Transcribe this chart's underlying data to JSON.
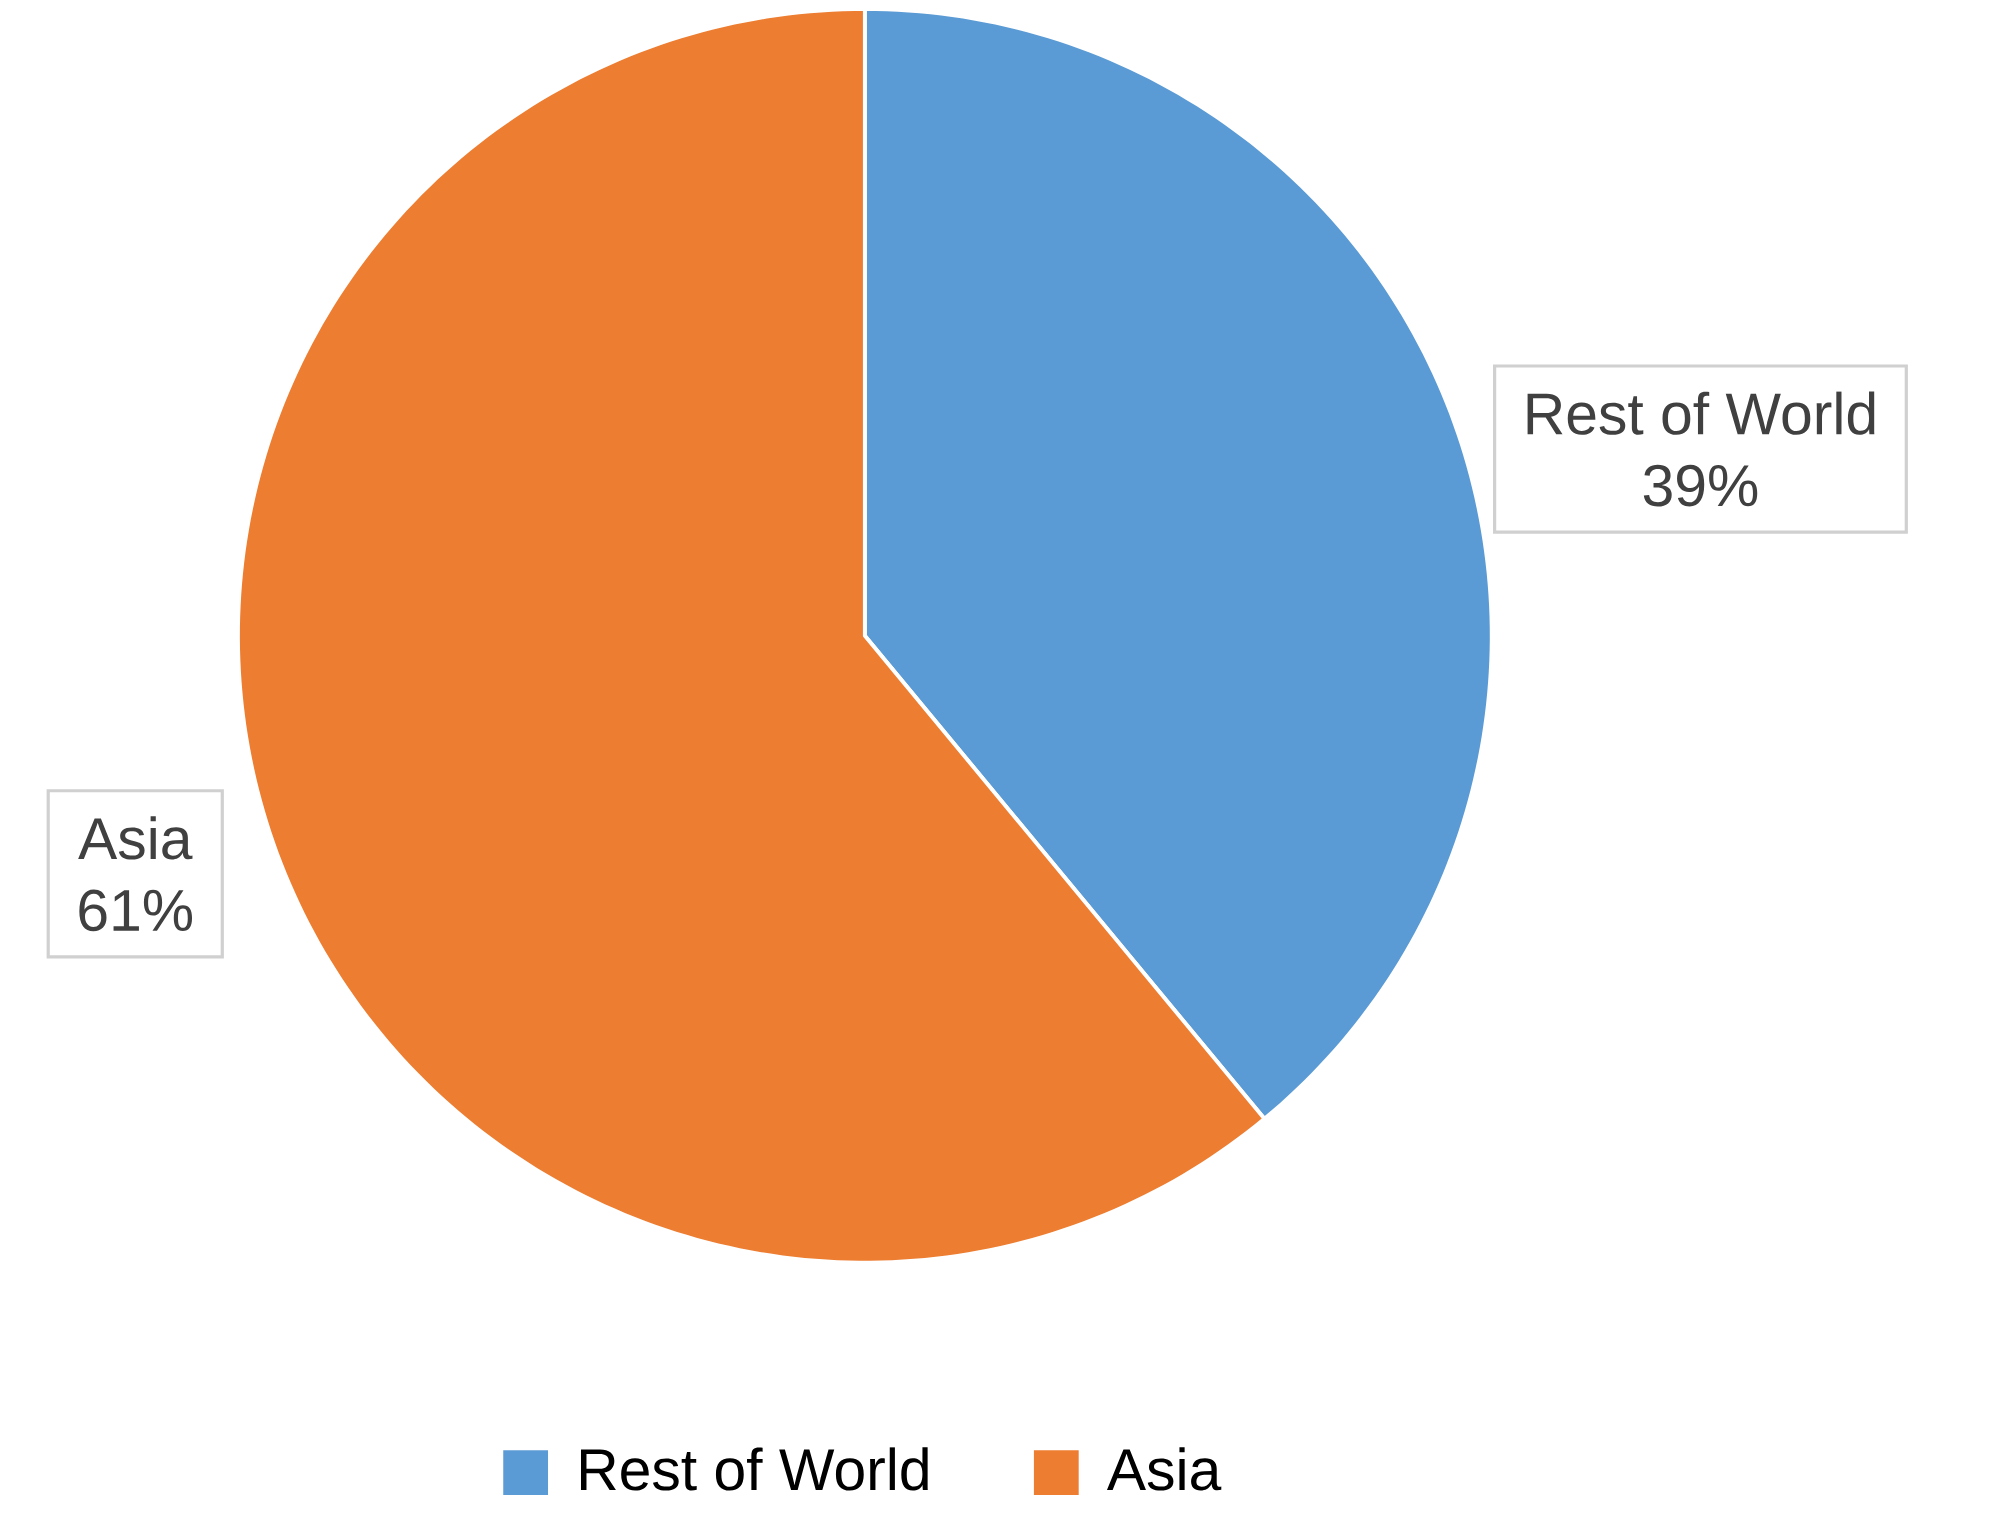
{
  "chart_data": {
    "type": "pie",
    "categories": [
      "Rest of World",
      "Asia"
    ],
    "values": [
      39,
      61
    ],
    "value_labels": [
      "39%",
      "61%"
    ],
    "colors": [
      "#5b9bd5",
      "#ed7d31"
    ],
    "legend": "bottom"
  }
}
